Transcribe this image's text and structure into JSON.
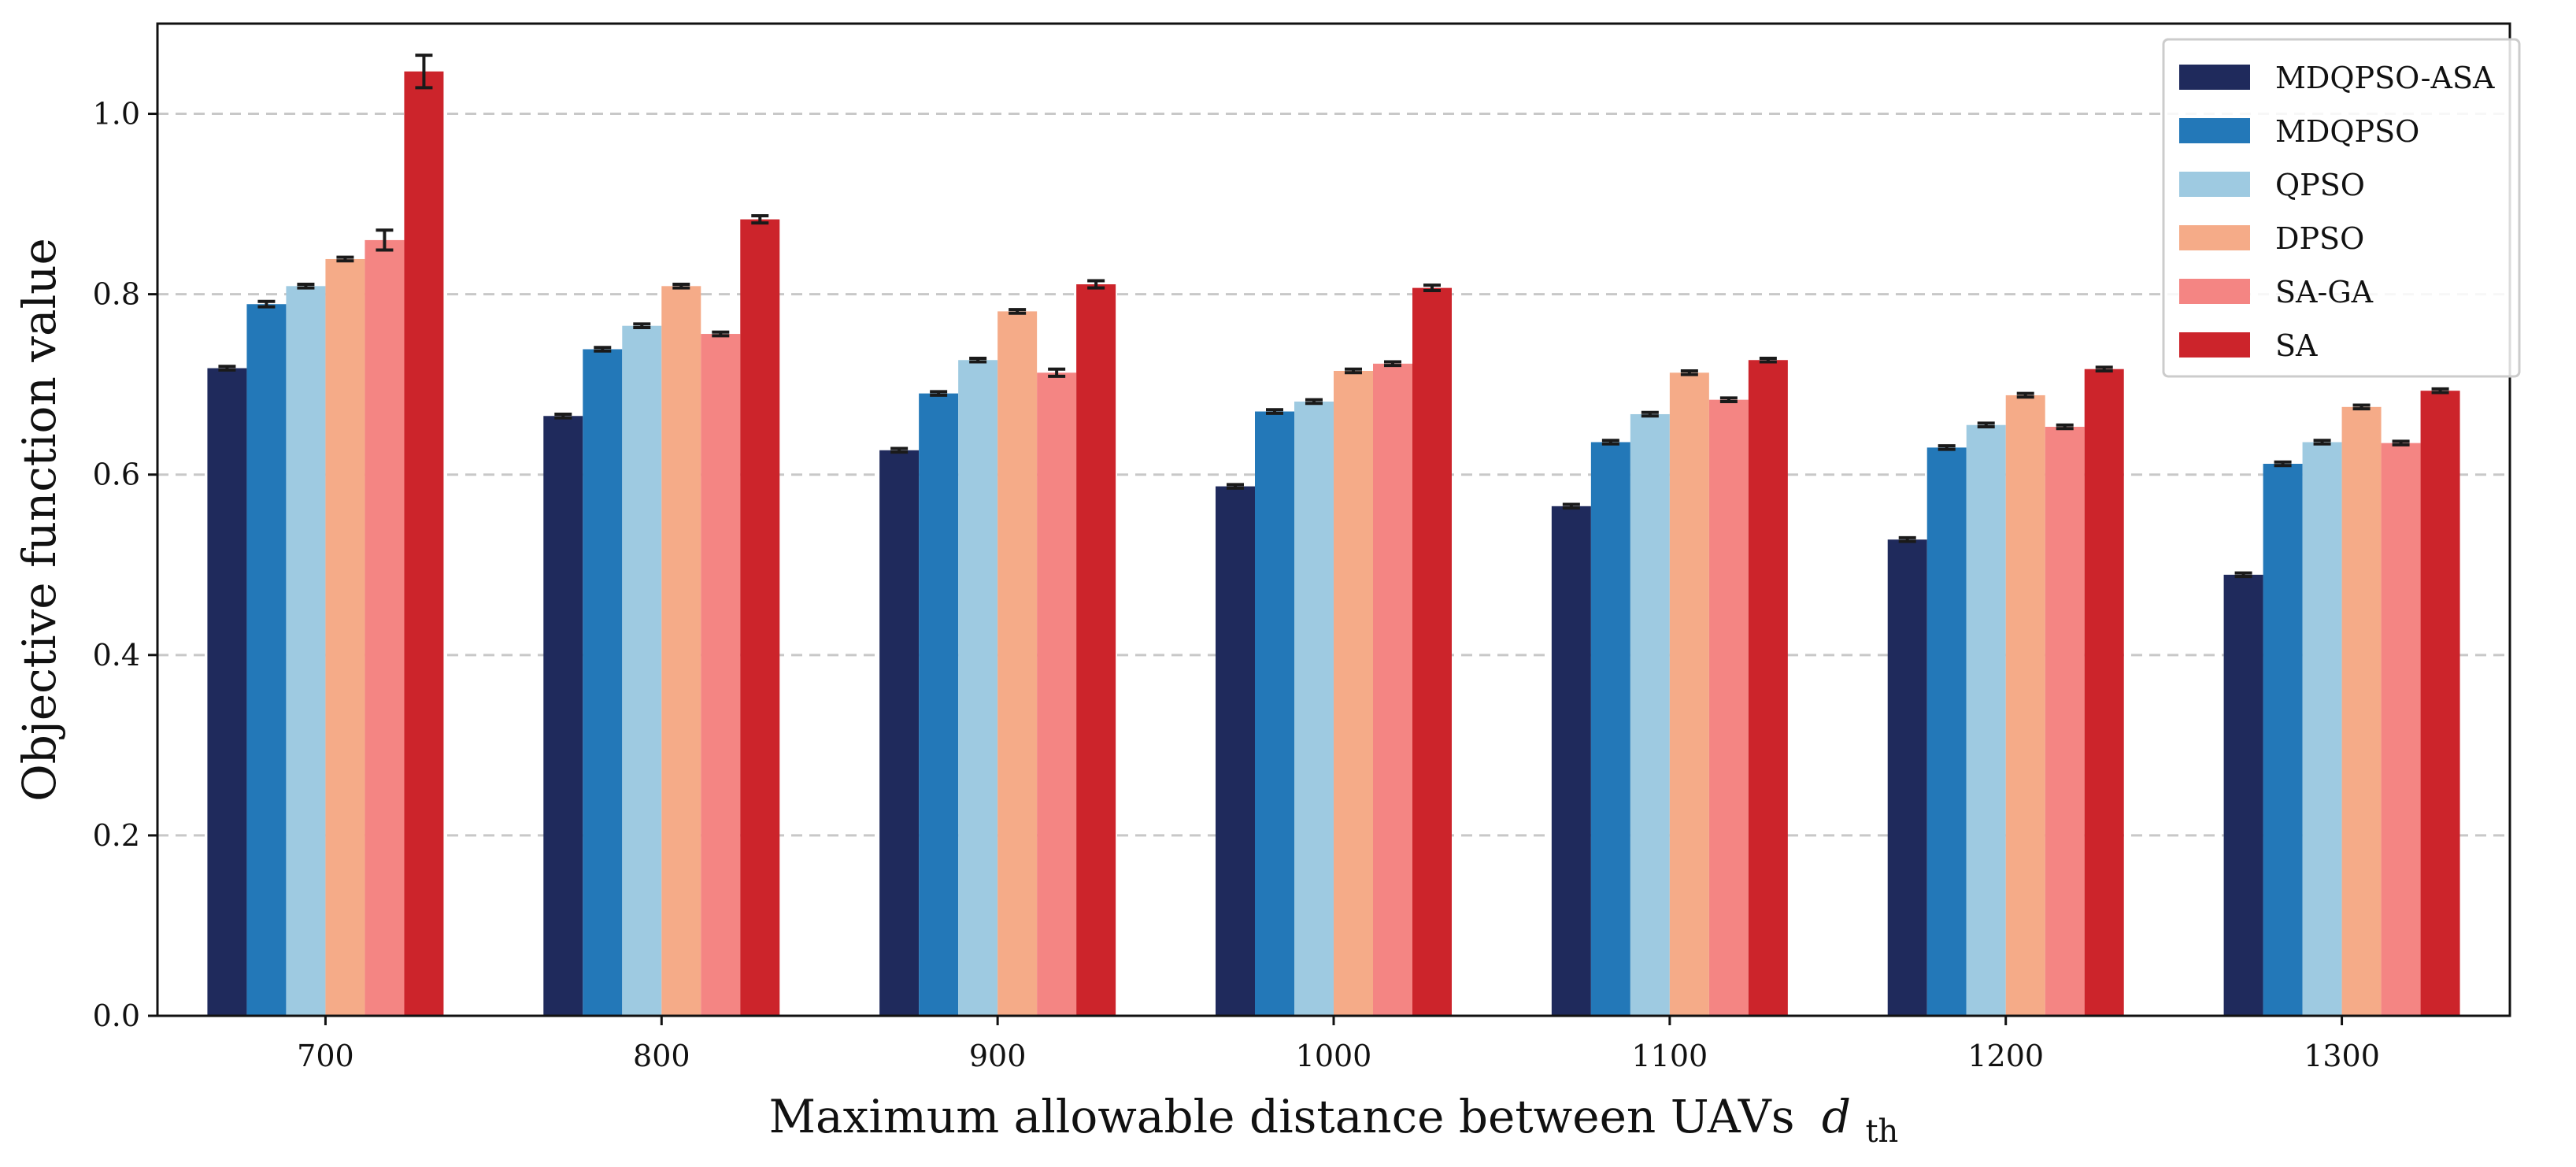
{
  "chart_data": {
    "type": "bar",
    "title": "",
    "xlabel": "Maximum allowable distance between UAVs",
    "xlabel_symbol": "d",
    "xlabel_subscript": "th",
    "ylabel": "Objective function value",
    "ylim": [
      0,
      1.1
    ],
    "yticks": [
      0.0,
      0.2,
      0.4,
      0.6,
      0.8,
      1.0
    ],
    "ytick_labels": [
      "0.0",
      "0.2",
      "0.4",
      "0.6",
      "0.8",
      "1.0"
    ],
    "grid": "horizontal dashed",
    "legend_position": "top-right",
    "categories": [
      "700",
      "800",
      "900",
      "1000",
      "1100",
      "1200",
      "1300"
    ],
    "series": [
      {
        "name": "MDQPSO-ASA",
        "color": "#1f2a5c",
        "values": [
          0.718,
          0.665,
          0.627,
          0.587,
          0.565,
          0.528,
          0.489
        ],
        "errors": [
          0.002,
          0.002,
          0.002,
          0.002,
          0.002,
          0.002,
          0.002
        ]
      },
      {
        "name": "MDQPSO",
        "color": "#2378b8",
        "values": [
          0.789,
          0.739,
          0.69,
          0.67,
          0.636,
          0.63,
          0.612
        ],
        "errors": [
          0.003,
          0.002,
          0.002,
          0.002,
          0.002,
          0.002,
          0.002
        ]
      },
      {
        "name": "QPSO",
        "color": "#9ecae1",
        "values": [
          0.809,
          0.765,
          0.727,
          0.681,
          0.667,
          0.655,
          0.636
        ],
        "errors": [
          0.002,
          0.002,
          0.002,
          0.002,
          0.002,
          0.002,
          0.002
        ]
      },
      {
        "name": "DPSO",
        "color": "#f5ab88",
        "values": [
          0.839,
          0.809,
          0.781,
          0.715,
          0.713,
          0.688,
          0.675
        ],
        "errors": [
          0.002,
          0.002,
          0.002,
          0.002,
          0.002,
          0.002,
          0.002
        ]
      },
      {
        "name": "SA-GA",
        "color": "#f48583",
        "values": [
          0.86,
          0.756,
          0.713,
          0.723,
          0.683,
          0.653,
          0.635
        ],
        "errors": [
          0.011,
          0.002,
          0.004,
          0.002,
          0.002,
          0.002,
          0.002
        ]
      },
      {
        "name": "SA",
        "color": "#cc242b",
        "values": [
          1.047,
          0.883,
          0.811,
          0.807,
          0.727,
          0.717,
          0.693
        ],
        "errors": [
          0.018,
          0.004,
          0.004,
          0.003,
          0.002,
          0.002,
          0.002
        ]
      }
    ]
  }
}
